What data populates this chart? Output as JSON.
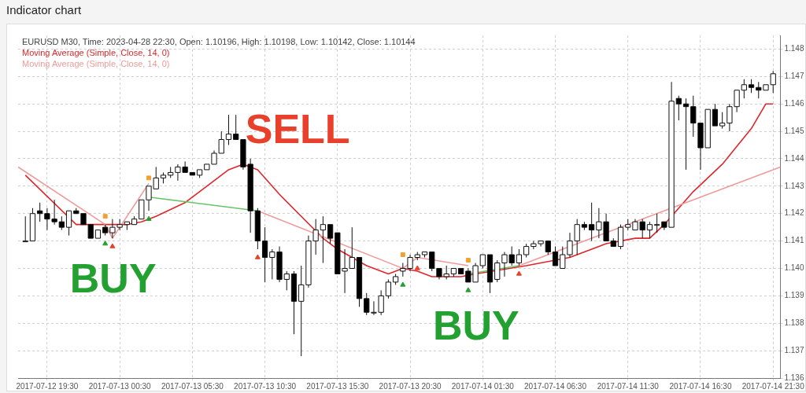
{
  "chart_data": {
    "type": "candlestick",
    "title": "Indicator chart",
    "subtitle": "EURUSD M30, Time: 2023-04-28 22:30, Open: 1.10196, High: 1.10198, Low: 1.10142, Close: 1.10144",
    "x": [
      "2017-07-12T18:00",
      "2017-07-12T18:30",
      "2017-07-12T19:00",
      "2017-07-12T19:30",
      "2017-07-12T20:00",
      "2017-07-12T20:30",
      "2017-07-12T21:00",
      "2017-07-12T21:30",
      "2017-07-12T22:00",
      "2017-07-12T22:30",
      "2017-07-12T23:00",
      "2017-07-12T23:30",
      "2017-07-13T00:00",
      "2017-07-13T00:30",
      "2017-07-13T01:00",
      "2017-07-13T01:30",
      "2017-07-13T02:00",
      "2017-07-13T02:30",
      "2017-07-13T03:00",
      "2017-07-13T03:30",
      "2017-07-13T04:00",
      "2017-07-13T04:30",
      "2017-07-13T05:00",
      "2017-07-13T05:30",
      "2017-07-13T06:00",
      "2017-07-13T06:30",
      "2017-07-13T07:00",
      "2017-07-13T07:30",
      "2017-07-13T08:00",
      "2017-07-13T08:30",
      "2017-07-13T09:00",
      "2017-07-13T09:30",
      "2017-07-13T10:00",
      "2017-07-13T10:30",
      "2017-07-13T11:00",
      "2017-07-13T11:30",
      "2017-07-13T12:00",
      "2017-07-13T12:30",
      "2017-07-13T13:00",
      "2017-07-13T13:30",
      "2017-07-13T14:00",
      "2017-07-13T14:30",
      "2017-07-13T15:00",
      "2017-07-13T15:30",
      "2017-07-13T16:00",
      "2017-07-13T16:30",
      "2017-07-13T17:00",
      "2017-07-13T17:30",
      "2017-07-13T18:00",
      "2017-07-13T18:30",
      "2017-07-13T19:00",
      "2017-07-13T19:30",
      "2017-07-13T20:00",
      "2017-07-13T20:30",
      "2017-07-13T21:00",
      "2017-07-13T21:30",
      "2017-07-13T22:00",
      "2017-07-13T22:30",
      "2017-07-13T23:00",
      "2017-07-13T23:30",
      "2017-07-14T00:00",
      "2017-07-14T00:30",
      "2017-07-14T01:00",
      "2017-07-14T01:30",
      "2017-07-14T02:00",
      "2017-07-14T02:30",
      "2017-07-14T03:00",
      "2017-07-14T03:30",
      "2017-07-14T04:00",
      "2017-07-14T04:30",
      "2017-07-14T05:00",
      "2017-07-14T05:30",
      "2017-07-14T06:00",
      "2017-07-14T06:30",
      "2017-07-14T07:00",
      "2017-07-14T07:30",
      "2017-07-14T08:00",
      "2017-07-14T08:30",
      "2017-07-14T09:00",
      "2017-07-14T09:30",
      "2017-07-14T10:00",
      "2017-07-14T10:30",
      "2017-07-14T11:00",
      "2017-07-14T11:30",
      "2017-07-14T12:00",
      "2017-07-14T12:30",
      "2017-07-14T13:00",
      "2017-07-14T13:30",
      "2017-07-14T14:00",
      "2017-07-14T14:30",
      "2017-07-14T15:00",
      "2017-07-14T15:30",
      "2017-07-14T16:00",
      "2017-07-14T16:30",
      "2017-07-14T17:00",
      "2017-07-14T17:30",
      "2017-07-14T18:00",
      "2017-07-14T18:30",
      "2017-07-14T19:00",
      "2017-07-14T19:30",
      "2017-07-14T20:00",
      "2017-07-14T20:30",
      "2017-07-14T21:00",
      "2017-07-14T21:30"
    ],
    "ohlc": [
      [
        1.141,
        1.1419,
        1.141,
        1.141
      ],
      [
        1.141,
        1.1422,
        1.141,
        1.142
      ],
      [
        1.1421,
        1.1424,
        1.1417,
        1.142
      ],
      [
        1.142,
        1.1422,
        1.1414,
        1.1418
      ],
      [
        1.1418,
        1.1425,
        1.1416,
        1.1417
      ],
      [
        1.1417,
        1.1419,
        1.1414,
        1.1415
      ],
      [
        1.1415,
        1.1421,
        1.1412,
        1.1421
      ],
      [
        1.1421,
        1.1422,
        1.142,
        1.142
      ],
      [
        1.142,
        1.142,
        1.1416,
        1.1416
      ],
      [
        1.1416,
        1.1416,
        1.1411,
        1.1411
      ],
      [
        1.1411,
        1.1414,
        1.1411,
        1.1414
      ],
      [
        1.1415,
        1.1416,
        1.1412,
        1.1413
      ],
      [
        1.1413,
        1.1418,
        1.1411,
        1.1415
      ],
      [
        1.1415,
        1.1418,
        1.1414,
        1.1416
      ],
      [
        1.1416,
        1.1417,
        1.1414,
        1.1417
      ],
      [
        1.1416,
        1.1419,
        1.1416,
        1.1418
      ],
      [
        1.1418,
        1.1425,
        1.1418,
        1.1425
      ],
      [
        1.1425,
        1.143,
        1.1421,
        1.143
      ],
      [
        1.1429,
        1.1437,
        1.1429,
        1.1433
      ],
      [
        1.1433,
        1.1435,
        1.1431,
        1.1434
      ],
      [
        1.1434,
        1.1437,
        1.1433,
        1.1435
      ],
      [
        1.1435,
        1.1438,
        1.1432,
        1.1437
      ],
      [
        1.1437,
        1.1439,
        1.1435,
        1.1435
      ],
      [
        1.1435,
        1.1435,
        1.1434,
        1.1434
      ],
      [
        1.1434,
        1.1436,
        1.1433,
        1.1436
      ],
      [
        1.1436,
        1.1438,
        1.1436,
        1.1438
      ],
      [
        1.1438,
        1.1443,
        1.1438,
        1.1442
      ],
      [
        1.1442,
        1.145,
        1.1442,
        1.1447
      ],
      [
        1.1447,
        1.1456,
        1.1445,
        1.1449
      ],
      [
        1.1449,
        1.1456,
        1.1447,
        1.1447
      ],
      [
        1.1447,
        1.1447,
        1.1436,
        1.1437
      ],
      [
        1.1438,
        1.144,
        1.1413,
        1.1421
      ],
      [
        1.1421,
        1.1422,
        1.1407,
        1.141
      ],
      [
        1.141,
        1.1415,
        1.1395,
        1.1404
      ],
      [
        1.1404,
        1.1407,
        1.1396,
        1.1406
      ],
      [
        1.1406,
        1.1408,
        1.1395,
        1.1396
      ],
      [
        1.1396,
        1.1399,
        1.1392,
        1.1398
      ],
      [
        1.1398,
        1.1399,
        1.1376,
        1.1388
      ],
      [
        1.1388,
        1.1401,
        1.1368,
        1.1394
      ],
      [
        1.1394,
        1.1412,
        1.1393,
        1.141
      ],
      [
        1.141,
        1.1418,
        1.1405,
        1.1414
      ],
      [
        1.1414,
        1.1419,
        1.1402,
        1.1416
      ],
      [
        1.1416,
        1.1416,
        1.1409,
        1.1411
      ],
      [
        1.1413,
        1.1413,
        1.1398,
        1.1398
      ],
      [
        1.1399,
        1.1407,
        1.1391,
        1.14
      ],
      [
        1.14,
        1.1415,
        1.14,
        1.1404
      ],
      [
        1.1404,
        1.1404,
        1.1386,
        1.1389
      ],
      [
        1.1389,
        1.1391,
        1.1383,
        1.1384
      ],
      [
        1.1384,
        1.1388,
        1.1383,
        1.1384
      ],
      [
        1.1384,
        1.1392,
        1.1383,
        1.139
      ],
      [
        1.139,
        1.1396,
        1.1389,
        1.1395
      ],
      [
        1.1395,
        1.1398,
        1.1394,
        1.1397
      ],
      [
        1.1399,
        1.1402,
        1.1397,
        1.14
      ],
      [
        1.14,
        1.1405,
        1.1399,
        1.1404
      ],
      [
        1.1404,
        1.1406,
        1.1403,
        1.1405
      ],
      [
        1.1405,
        1.1406,
        1.1404,
        1.1406
      ],
      [
        1.1406,
        1.1406,
        1.1399,
        1.14
      ],
      [
        1.14,
        1.14,
        1.1396,
        1.1397
      ],
      [
        1.1397,
        1.1401,
        1.1396,
        1.1398
      ],
      [
        1.1398,
        1.14,
        1.1397,
        1.14
      ],
      [
        1.14,
        1.14,
        1.1398,
        1.1398
      ],
      [
        1.1399,
        1.14,
        1.1395,
        1.1395
      ],
      [
        1.1395,
        1.1402,
        1.1395,
        1.1401
      ],
      [
        1.1401,
        1.1405,
        1.14,
        1.1405
      ],
      [
        1.1405,
        1.1405,
        1.1391,
        1.1395
      ],
      [
        1.1396,
        1.1403,
        1.1395,
        1.1402
      ],
      [
        1.1402,
        1.1406,
        1.1397,
        1.1405
      ],
      [
        1.1405,
        1.1408,
        1.1401,
        1.1402
      ],
      [
        1.1402,
        1.1407,
        1.1401,
        1.1405
      ],
      [
        1.1405,
        1.1409,
        1.1404,
        1.1408
      ],
      [
        1.1408,
        1.141,
        1.1407,
        1.1409
      ],
      [
        1.1409,
        1.141,
        1.1408,
        1.141
      ],
      [
        1.141,
        1.141,
        1.1405,
        1.1406
      ],
      [
        1.1406,
        1.1408,
        1.1401,
        1.1401
      ],
      [
        1.14,
        1.1408,
        1.14,
        1.1405
      ],
      [
        1.1405,
        1.1413,
        1.1404,
        1.141
      ],
      [
        1.141,
        1.1418,
        1.1405,
        1.1416
      ],
      [
        1.1416,
        1.1417,
        1.1414,
        1.1415
      ],
      [
        1.1416,
        1.1424,
        1.141,
        1.1414
      ],
      [
        1.1414,
        1.1422,
        1.1411,
        1.1417
      ],
      [
        1.1417,
        1.142,
        1.141,
        1.141
      ],
      [
        1.141,
        1.1411,
        1.1408,
        1.1408
      ],
      [
        1.1408,
        1.1416,
        1.1407,
        1.1415
      ],
      [
        1.1415,
        1.1418,
        1.1414,
        1.1416
      ],
      [
        1.1414,
        1.1418,
        1.1414,
        1.1417
      ],
      [
        1.1417,
        1.1418,
        1.1411,
        1.1414
      ],
      [
        1.1414,
        1.1417,
        1.1411,
        1.1416
      ],
      [
        1.1416,
        1.142,
        1.1413,
        1.1416
      ],
      [
        1.1417,
        1.1417,
        1.1414,
        1.1415
      ],
      [
        1.1415,
        1.1468,
        1.1415,
        1.1461
      ],
      [
        1.1462,
        1.1463,
        1.1454,
        1.146
      ],
      [
        1.146,
        1.1462,
        1.1436,
        1.1459
      ],
      [
        1.1459,
        1.1463,
        1.1448,
        1.1453
      ],
      [
        1.1453,
        1.1453,
        1.1436,
        1.1444
      ],
      [
        1.1444,
        1.1458,
        1.1444,
        1.1458
      ],
      [
        1.1458,
        1.146,
        1.1452,
        1.1452
      ],
      [
        1.1452,
        1.1457,
        1.1451,
        1.1453
      ],
      [
        1.1453,
        1.146,
        1.145,
        1.1459
      ],
      [
        1.1459,
        1.1465,
        1.1457,
        1.1465
      ],
      [
        1.1465,
        1.1469,
        1.1462,
        1.1467
      ],
      [
        1.1467,
        1.1469,
        1.1464,
        1.1466
      ],
      [
        1.1466,
        1.1468,
        1.1462,
        1.1465
      ],
      [
        1.1465,
        1.1467,
        1.1465,
        1.1467
      ],
      [
        1.1467,
        1.1472,
        1.1464,
        1.1471
      ]
    ],
    "colors": [
      "#ffffff",
      "#ffffff",
      "#000000",
      "#000000",
      "#000000",
      "#000000",
      "#ffffff",
      "#000000",
      "#000000",
      "#000000",
      "#ffffff",
      "#000000",
      "#ffffff",
      "#ffffff",
      "#ffffff",
      "#ffffff",
      "#ffffff",
      "#ffffff",
      "#ffffff",
      "#ffffff",
      "#ffffff",
      "#ffffff",
      "#000000",
      "#000000",
      "#ffffff",
      "#ffffff",
      "#ffffff",
      "#ffffff",
      "#ffffff",
      "#000000",
      "#000000",
      "#000000",
      "#000000",
      "#000000",
      "#ffffff",
      "#000000",
      "#ffffff",
      "#000000",
      "#ffffff",
      "#ffffff",
      "#ffffff",
      "#ffffff",
      "#000000",
      "#000000",
      "#ffffff",
      "#ffffff",
      "#000000",
      "#000000",
      "#ffffff",
      "#ffffff",
      "#ffffff",
      "#ffffff",
      "#ffffff",
      "#ffffff",
      "#ffffff",
      "#ffffff",
      "#000000",
      "#000000",
      "#ffffff",
      "#ffffff",
      "#000000",
      "#000000",
      "#ffffff",
      "#ffffff",
      "#000000",
      "#ffffff",
      "#ffffff",
      "#000000",
      "#ffffff",
      "#ffffff",
      "#ffffff",
      "#ffffff",
      "#000000",
      "#000000",
      "#ffffff",
      "#ffffff",
      "#ffffff",
      "#000000",
      "#000000",
      "#ffffff",
      "#000000",
      "#000000",
      "#ffffff",
      "#ffffff",
      "#ffffff",
      "#000000",
      "#ffffff",
      "#ffffff",
      "#000000",
      "#ffffff",
      "#000000",
      "#000000",
      "#000000",
      "#000000",
      "#ffffff",
      "#000000",
      "#ffffff",
      "#ffffff",
      "#ffffff",
      "#ffffff",
      "#000000",
      "#000000",
      "#ffffff",
      "#ffffff"
    ],
    "series": [
      {
        "type": "line",
        "name": "Moving Average (Simple, Close, 14, 0)",
        "color": "#e0262b",
        "x": [
          "2017-07-12T18:00",
          "2017-07-12T21:30",
          "2017-07-12T22:00",
          "2017-07-12T23:30",
          "2017-07-13T01:00",
          "2017-07-13T02:00",
          "2017-07-13T03:00",
          "2017-07-13T05:00",
          "2017-07-13T06:30",
          "2017-07-13T08:00",
          "2017-07-13T09:00",
          "2017-07-13T09:30",
          "2017-07-13T10:00",
          "2017-07-13T11:30",
          "2017-07-13T13:00",
          "2017-07-13T14:30",
          "2017-07-13T15:30",
          "2017-07-13T17:30",
          "2017-07-13T19:00",
          "2017-07-13T20:00",
          "2017-07-13T21:00",
          "2017-07-13T22:00",
          "2017-07-13T23:00",
          "2017-07-14T00:00",
          "2017-07-14T01:00",
          "2017-07-14T04:30",
          "2017-07-14T06:30",
          "2017-07-14T07:30",
          "2017-07-14T10:00",
          "2017-07-14T12:00",
          "2017-07-14T13:00",
          "2017-07-14T14:00",
          "2017-07-14T16:00",
          "2017-07-14T18:00",
          "2017-07-14T20:00",
          "2017-07-14T21:00",
          "2017-07-14T21:30"
        ],
        "values": [
          1.1434,
          1.1416,
          1.1416,
          1.1416,
          1.1416,
          1.1417,
          1.1419,
          1.1424,
          1.143,
          1.1436,
          1.1438,
          1.1437,
          1.1436,
          1.1427,
          1.1419,
          1.1411,
          1.1407,
          1.1401,
          1.1398,
          1.14,
          1.1399,
          1.1397,
          1.1397,
          1.1397,
          1.1398,
          1.1401,
          1.1403,
          1.1404,
          1.1409,
          1.1411,
          1.1411,
          1.1416,
          1.1428,
          1.1438,
          1.1451,
          1.146,
          1.146
        ]
      },
      {
        "type": "line",
        "name": "Moving Average (Simple, Close, 14, 0)",
        "color": "#f09a9a",
        "x": [
          "2017-07-12T17:30",
          "2017-07-12T23:30",
          "2017-07-13T00:00",
          "2017-07-13T02:30",
          "2017-07-13T06:00",
          "2017-07-13T10:00",
          "2017-07-13T20:00",
          "2017-07-13T21:00",
          "2017-07-14T00:30",
          "2017-07-14T02:30",
          "2017-07-14T04:00",
          "2017-07-14T22:00"
        ],
        "values": [
          1.1437,
          1.1416,
          1.1411,
          1.1431,
          null,
          1.1421,
          1.14,
          1.1404,
          1.1401,
          null,
          1.1401,
          1.1437
        ]
      },
      {
        "type": "line",
        "color": "#66c466",
        "x": [
          "2017-07-13T02:30",
          "2017-07-13T10:00",
          "2017-07-13T18:00",
          "2017-07-14T00:30",
          "2017-07-14T04:00"
        ],
        "values": [
          1.1426,
          1.1421,
          null,
          1.1398,
          1.1401
        ]
      },
      {
        "type": "scatter",
        "color": "#f0a030",
        "marker": "square",
        "x": [
          "2017-07-12T23:30",
          "2017-07-13T02:30",
          "2017-07-13T20:00",
          "2017-07-14T00:30"
        ],
        "values": [
          1.1419,
          1.1433,
          1.1405,
          1.1403
        ]
      },
      {
        "type": "scatter",
        "color": "#22a030",
        "marker": "triangle",
        "x": [
          "2017-07-12T23:30",
          "2017-07-13T02:30",
          "2017-07-13T20:00",
          "2017-07-14T00:30"
        ],
        "values": [
          1.1409,
          1.1418,
          1.1394,
          1.1392
        ]
      },
      {
        "type": "scatter",
        "color": "#e8402a",
        "marker": "triangle",
        "x": [
          "2017-07-13T00:00",
          "2017-07-13T10:00",
          "2017-07-13T21:00",
          "2017-07-14T04:00"
        ],
        "values": [
          1.1408,
          1.1404,
          1.14,
          1.1398
        ]
      }
    ],
    "xlim": [
      "2017-07-12T17:30",
      "2017-07-14T22:00"
    ],
    "xticks": [
      {
        "value": "2017-07-12T19:30",
        "label": "2017-07-12 19:30"
      },
      {
        "value": "2017-07-13T00:30",
        "label": "2017-07-13 00:30"
      },
      {
        "value": "2017-07-13T05:30",
        "label": "2017-07-13 05:30"
      },
      {
        "value": "2017-07-13T10:30",
        "label": "2017-07-13 10:30"
      },
      {
        "value": "2017-07-13T15:30",
        "label": "2017-07-13 15:30"
      },
      {
        "value": "2017-07-13T20:30",
        "label": "2017-07-13 20:30"
      },
      {
        "value": "2017-07-14T01:30",
        "label": "2017-07-14 01:30"
      },
      {
        "value": "2017-07-14T06:30",
        "label": "2017-07-14 06:30"
      },
      {
        "value": "2017-07-14T11:30",
        "label": "2017-07-14 11:30"
      },
      {
        "value": "2017-07-14T16:30",
        "label": "2017-07-14 16:30"
      },
      {
        "value": "2017-07-14T21:30",
        "label": "2017-07-14 21:30"
      }
    ],
    "ylim": [
      1.136,
      1.1485
    ],
    "yticks": [
      1.136,
      1.137,
      1.138,
      1.139,
      {
        "value": 1.14,
        "label": "1.140"
      },
      1.141,
      1.142,
      1.143,
      1.144,
      1.145,
      1.146,
      1.147,
      1.148
    ],
    "grid": true,
    "legend": "top left",
    "annotations": [
      {
        "text": "SELL",
        "x": "2017-07-13T08:30",
        "y": 1.1456
      },
      {
        "text": "BUY",
        "x": "2017-07-12T23:30",
        "y": 1.1409
      },
      {
        "text": "BUY",
        "x": "2017-07-14T00:30",
        "y": 1.1392
      }
    ]
  }
}
